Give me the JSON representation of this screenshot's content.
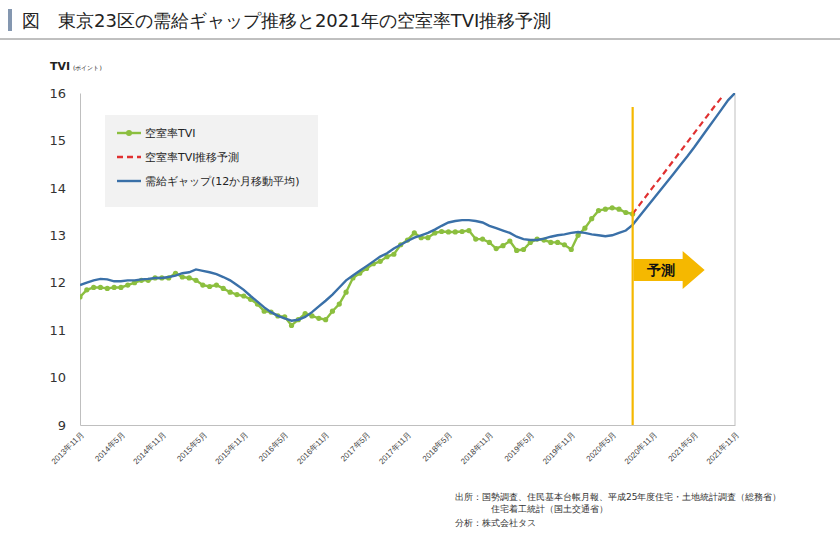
{
  "chart_data": {
    "type": "line",
    "title": "図　東京23区の需給ギャップ推移と2021年の空室率TVI推移予測",
    "y_label": "TVI",
    "y_label_unit": "(ポイント)",
    "ylim": [
      9,
      16
    ],
    "yticks": [
      9,
      10,
      11,
      12,
      13,
      14,
      15,
      16
    ],
    "grid": false,
    "legend": "upper left",
    "annotations": [
      {
        "text": "予測"
      }
    ],
    "source": [
      "出所：国勢調査、住民基本台帳月報、平成25年度住宅・土地統計調査（総務省）",
      "住宅着工統計（国土交通省）",
      "分析：株式会社タス"
    ],
    "categories": [
      "2013年11月",
      null,
      null,
      null,
      null,
      null,
      "2014年5月",
      null,
      null,
      null,
      null,
      null,
      "2014年11月",
      null,
      null,
      null,
      null,
      null,
      "2015年5月",
      null,
      null,
      null,
      null,
      null,
      "2015年11月",
      null,
      null,
      null,
      null,
      null,
      "2016年5月",
      null,
      null,
      null,
      null,
      null,
      "2016年11月",
      null,
      null,
      null,
      null,
      null,
      "2017年5月",
      null,
      null,
      null,
      null,
      null,
      "2017年11月",
      null,
      null,
      null,
      null,
      null,
      "2018年5月",
      null,
      null,
      null,
      null,
      null,
      "2018年11月",
      null,
      null,
      null,
      null,
      null,
      "2019年5月",
      null,
      null,
      null,
      null,
      null,
      "2019年11月",
      null,
      null,
      null,
      null,
      null,
      "2020年5月",
      null,
      null,
      null,
      null,
      null,
      "2020年11月",
      null,
      null,
      null,
      null,
      null,
      "2021年5月",
      null,
      null,
      null,
      null,
      null,
      "2021年11月"
    ],
    "series": [
      {
        "name": "空室率TVI",
        "color": "#8cbf3f",
        "marker": "circle",
        "line_style": "solid",
        "values": [
          11.7,
          11.85,
          11.9,
          11.9,
          11.88,
          11.9,
          11.9,
          11.95,
          12.0,
          12.05,
          12.05,
          12.1,
          12.1,
          12.1,
          12.2,
          12.12,
          12.1,
          12.05,
          11.95,
          11.92,
          11.95,
          11.88,
          11.8,
          11.75,
          11.72,
          11.65,
          11.55,
          11.4,
          11.38,
          11.3,
          11.28,
          11.1,
          11.22,
          11.35,
          11.3,
          11.25,
          11.22,
          11.4,
          11.55,
          11.8,
          12.1,
          12.2,
          12.3,
          12.4,
          12.45,
          12.55,
          12.6,
          12.8,
          12.9,
          13.05,
          12.95,
          12.95,
          13.05,
          13.08,
          13.07,
          13.07,
          13.08,
          13.1,
          12.92,
          12.92,
          12.85,
          12.72,
          12.78,
          12.88,
          12.68,
          12.7,
          12.85,
          12.92,
          12.9,
          12.85,
          12.85,
          12.8,
          12.7,
          13.0,
          13.15,
          13.35,
          13.52,
          13.55,
          13.58,
          13.55,
          13.48,
          13.45,
          null,
          null,
          null,
          null,
          null,
          null,
          null,
          null,
          null,
          null,
          null,
          null,
          null,
          null,
          null
        ]
      },
      {
        "name": "空室率TVI推移予測",
        "color": "#e03030",
        "marker": "none",
        "line_style": "dashed",
        "values": [
          null,
          null,
          null,
          null,
          null,
          null,
          null,
          null,
          null,
          null,
          null,
          null,
          null,
          null,
          null,
          null,
          null,
          null,
          null,
          null,
          null,
          null,
          null,
          null,
          null,
          null,
          null,
          null,
          null,
          null,
          null,
          null,
          null,
          null,
          null,
          null,
          null,
          null,
          null,
          null,
          null,
          null,
          null,
          null,
          null,
          null,
          null,
          null,
          null,
          null,
          null,
          null,
          null,
          null,
          null,
          null,
          null,
          null,
          null,
          null,
          null,
          null,
          null,
          null,
          null,
          null,
          null,
          null,
          null,
          null,
          null,
          null,
          null,
          null,
          null,
          null,
          null,
          null,
          null,
          null,
          null,
          13.45,
          13.64,
          13.83,
          14.02,
          14.2,
          14.39,
          14.58,
          14.77,
          14.96,
          15.15,
          15.34,
          15.53,
          15.72,
          15.9,
          null,
          null
        ]
      },
      {
        "name": "需給ギャップ(12か月移動平均)",
        "color": "#3a70a8",
        "marker": "none",
        "line_style": "solid",
        "values": [
          11.95,
          12.0,
          12.05,
          12.08,
          12.07,
          12.03,
          12.03,
          12.05,
          12.05,
          12.07,
          12.08,
          12.1,
          12.1,
          12.12,
          12.15,
          12.2,
          12.22,
          12.28,
          12.25,
          12.22,
          12.18,
          12.12,
          12.05,
          11.95,
          11.85,
          11.72,
          11.6,
          11.48,
          11.38,
          11.3,
          11.25,
          11.2,
          11.22,
          11.28,
          11.38,
          11.5,
          11.62,
          11.75,
          11.9,
          12.05,
          12.15,
          12.25,
          12.35,
          12.45,
          12.55,
          12.62,
          12.72,
          12.8,
          12.88,
          12.95,
          13.0,
          13.05,
          13.12,
          13.2,
          13.27,
          13.3,
          13.32,
          13.32,
          13.3,
          13.27,
          13.2,
          13.15,
          13.1,
          13.05,
          12.97,
          12.92,
          12.9,
          12.9,
          12.93,
          12.97,
          13.0,
          13.02,
          13.05,
          13.07,
          13.05,
          13.02,
          13.0,
          12.98,
          13.0,
          13.05,
          13.1,
          13.22,
          13.4,
          13.58,
          13.76,
          13.94,
          14.12,
          14.3,
          14.48,
          14.66,
          14.85,
          15.05,
          15.25,
          15.45,
          15.65,
          15.85,
          16.0
        ]
      }
    ]
  }
}
